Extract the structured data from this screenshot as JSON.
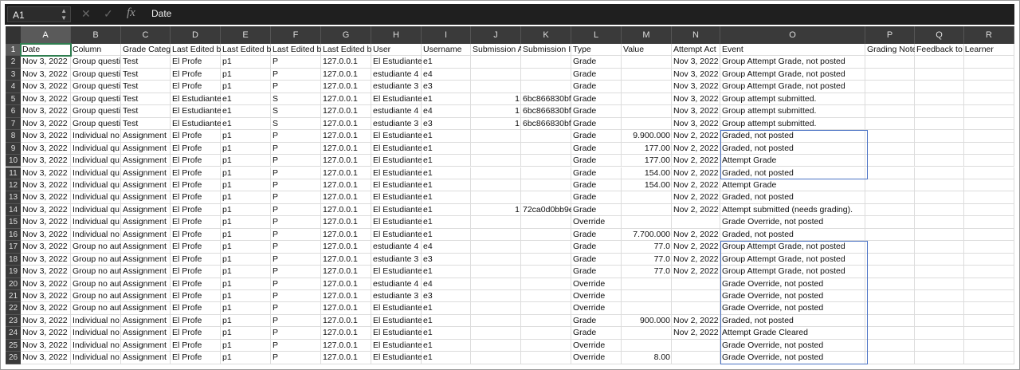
{
  "formula_bar": {
    "name_box": "A1",
    "content": "Date"
  },
  "columns": [
    "A",
    "B",
    "C",
    "D",
    "E",
    "F",
    "G",
    "H",
    "I",
    "J",
    "K",
    "L",
    "M",
    "N",
    "O",
    "P",
    "Q",
    "R"
  ],
  "row_numbers": [
    1,
    2,
    3,
    4,
    5,
    6,
    7,
    8,
    9,
    10,
    11,
    12,
    13,
    14,
    15,
    16,
    17,
    18,
    19,
    20,
    21,
    22,
    23,
    24,
    25,
    26
  ],
  "table": {
    "rows": [
      [
        "Date",
        "Column",
        "Grade Categ",
        "Last Edited b",
        "Last Edited b",
        "Last Edited b",
        "Last Edited b",
        "User",
        "Username",
        "Submission A",
        "Submission I",
        "Type",
        "Value",
        "Attempt Act",
        "Event",
        "Grading Note",
        "Feedback to Learner",
        null
      ],
      [
        "Nov 3, 2022",
        "Group questi",
        "Test",
        "El Profe",
        "p1",
        "P",
        "127.0.0.1",
        "El Estudiante",
        "e1",
        null,
        null,
        "Grade",
        null,
        "Nov 3, 2022",
        "Group Attempt Grade, not posted",
        null,
        null,
        null
      ],
      [
        "Nov 3, 2022",
        "Group questi",
        "Test",
        "El Profe",
        "p1",
        "P",
        "127.0.0.1",
        "estudiante 4",
        "e4",
        null,
        null,
        "Grade",
        null,
        "Nov 3, 2022",
        "Group Attempt Grade, not posted",
        null,
        null,
        null
      ],
      [
        "Nov 3, 2022",
        "Group questi",
        "Test",
        "El Profe",
        "p1",
        "P",
        "127.0.0.1",
        "estudiante 3",
        "e3",
        null,
        null,
        "Grade",
        null,
        "Nov 3, 2022",
        "Group Attempt Grade, not posted",
        null,
        null,
        null
      ],
      [
        "Nov 3, 2022",
        "Group questi",
        "Test",
        "El Estudiante",
        "e1",
        "S",
        "127.0.0.1",
        "El Estudiante",
        "e1",
        1,
        "6bc866830bf",
        "Grade",
        null,
        "Nov 3, 2022",
        "Group attempt submitted.",
        null,
        null,
        null
      ],
      [
        "Nov 3, 2022",
        "Group questi",
        "Test",
        "El Estudiante",
        "e1",
        "S",
        "127.0.0.1",
        "estudiante 4",
        "e4",
        1,
        "6bc866830bf",
        "Grade",
        null,
        "Nov 3, 2022",
        "Group attempt submitted.",
        null,
        null,
        null
      ],
      [
        "Nov 3, 2022",
        "Group questi",
        "Test",
        "El Estudiante",
        "e1",
        "S",
        "127.0.0.1",
        "estudiante 3",
        "e3",
        1,
        "6bc866830bf",
        "Grade",
        null,
        "Nov 3, 2022",
        "Group attempt submitted.",
        null,
        null,
        null
      ],
      [
        "Nov 3, 2022",
        "Individual no",
        "Assignment",
        "El Profe",
        "p1",
        "P",
        "127.0.0.1",
        "El Estudiante",
        "e1",
        null,
        null,
        "Grade",
        "9.900.000",
        "Nov 2, 2022",
        "Graded, not posted",
        null,
        null,
        null
      ],
      [
        "Nov 3, 2022",
        "Individual qu",
        "Assignment",
        "El Profe",
        "p1",
        "P",
        "127.0.0.1",
        "El Estudiante",
        "e1",
        null,
        null,
        "Grade",
        "177.00",
        "Nov 2, 2022",
        "Graded, not posted",
        null,
        null,
        null
      ],
      [
        "Nov 3, 2022",
        "Individual qu",
        "Assignment",
        "El Profe",
        "p1",
        "P",
        "127.0.0.1",
        "El Estudiante",
        "e1",
        null,
        null,
        "Grade",
        "177.00",
        "Nov 2, 2022",
        "Attempt Grade",
        null,
        null,
        null
      ],
      [
        "Nov 3, 2022",
        "Individual qu",
        "Assignment",
        "El Profe",
        "p1",
        "P",
        "127.0.0.1",
        "El Estudiante",
        "e1",
        null,
        null,
        "Grade",
        "154.00",
        "Nov 2, 2022",
        "Graded, not posted",
        null,
        null,
        null
      ],
      [
        "Nov 3, 2022",
        "Individual qu",
        "Assignment",
        "El Profe",
        "p1",
        "P",
        "127.0.0.1",
        "El Estudiante",
        "e1",
        null,
        null,
        "Grade",
        "154.00",
        "Nov 2, 2022",
        "Attempt Grade",
        null,
        null,
        null
      ],
      [
        "Nov 3, 2022",
        "Individual qu",
        "Assignment",
        "El Profe",
        "p1",
        "P",
        "127.0.0.1",
        "El Estudiante",
        "e1",
        null,
        null,
        "Grade",
        null,
        "Nov 2, 2022",
        "Graded, not posted",
        null,
        null,
        null
      ],
      [
        "Nov 3, 2022",
        "Individual qu",
        "Assignment",
        "El Profe",
        "p1",
        "P",
        "127.0.0.1",
        "El Estudiante",
        "e1",
        1,
        "72ca0d0bb9e",
        "Grade",
        null,
        "Nov 2, 2022",
        "Attempt submitted (needs grading).",
        null,
        null,
        null
      ],
      [
        "Nov 3, 2022",
        "Individual qu",
        "Assignment",
        "El Profe",
        "p1",
        "P",
        "127.0.0.1",
        "El Estudiante",
        "e1",
        null,
        null,
        "Override",
        null,
        null,
        "Grade Override, not posted",
        null,
        null,
        null
      ],
      [
        "Nov 3, 2022",
        "Individual no",
        "Assignment",
        "El Profe",
        "p1",
        "P",
        "127.0.0.1",
        "El Estudiante",
        "e1",
        null,
        null,
        "Grade",
        "7.700.000",
        "Nov 2, 2022",
        "Graded, not posted",
        null,
        null,
        null
      ],
      [
        "Nov 3, 2022",
        "Group no aut",
        "Assignment",
        "El Profe",
        "p1",
        "P",
        "127.0.0.1",
        "estudiante 4",
        "e4",
        null,
        null,
        "Grade",
        "77.0",
        "Nov 2, 2022",
        "Group Attempt Grade, not posted",
        null,
        null,
        null
      ],
      [
        "Nov 3, 2022",
        "Group no aut",
        "Assignment",
        "El Profe",
        "p1",
        "P",
        "127.0.0.1",
        "estudiante 3",
        "e3",
        null,
        null,
        "Grade",
        "77.0",
        "Nov 2, 2022",
        "Group Attempt Grade, not posted",
        null,
        null,
        null
      ],
      [
        "Nov 3, 2022",
        "Group no aut",
        "Assignment",
        "El Profe",
        "p1",
        "P",
        "127.0.0.1",
        "El Estudiante",
        "e1",
        null,
        null,
        "Grade",
        "77.0",
        "Nov 2, 2022",
        "Group Attempt Grade, not posted",
        null,
        null,
        null
      ],
      [
        "Nov 3, 2022",
        "Group no aut",
        "Assignment",
        "El Profe",
        "p1",
        "P",
        "127.0.0.1",
        "estudiante 4",
        "e4",
        null,
        null,
        "Override",
        null,
        null,
        "Grade Override, not posted",
        null,
        null,
        null
      ],
      [
        "Nov 3, 2022",
        "Group no aut",
        "Assignment",
        "El Profe",
        "p1",
        "P",
        "127.0.0.1",
        "estudiante 3",
        "e3",
        null,
        null,
        "Override",
        null,
        null,
        "Grade Override, not posted",
        null,
        null,
        null
      ],
      [
        "Nov 3, 2022",
        "Group no aut",
        "Assignment",
        "El Profe",
        "p1",
        "P",
        "127.0.0.1",
        "El Estudiante",
        "e1",
        null,
        null,
        "Override",
        null,
        null,
        "Grade Override, not posted",
        null,
        null,
        null
      ],
      [
        "Nov 3, 2022",
        "Individual no",
        "Assignment",
        "El Profe",
        "p1",
        "P",
        "127.0.0.1",
        "El Estudiante",
        "e1",
        null,
        null,
        "Grade",
        "900.000",
        "Nov 2, 2022",
        "Graded, not posted",
        null,
        null,
        null
      ],
      [
        "Nov 3, 2022",
        "Individual no",
        "Assignment",
        "El Profe",
        "p1",
        "P",
        "127.0.0.1",
        "El Estudiante",
        "e1",
        null,
        null,
        "Grade",
        null,
        "Nov 2, 2022",
        "Attempt Grade Cleared",
        null,
        null,
        null
      ],
      [
        "Nov 3, 2022",
        "Individual no",
        "Assignment",
        "El Profe",
        "p1",
        "P",
        "127.0.0.1",
        "El Estudiante",
        "e1",
        null,
        null,
        "Override",
        null,
        null,
        "Grade Override, not posted",
        null,
        null,
        null
      ],
      [
        "Nov 3, 2022",
        "Individual no",
        "Assignment",
        "El Profe",
        "p1",
        "P",
        "127.0.0.1",
        "El Estudiante",
        "e1",
        null,
        null,
        "Override",
        "8.00",
        null,
        "Grade Override, not posted",
        null,
        null,
        null
      ]
    ]
  }
}
